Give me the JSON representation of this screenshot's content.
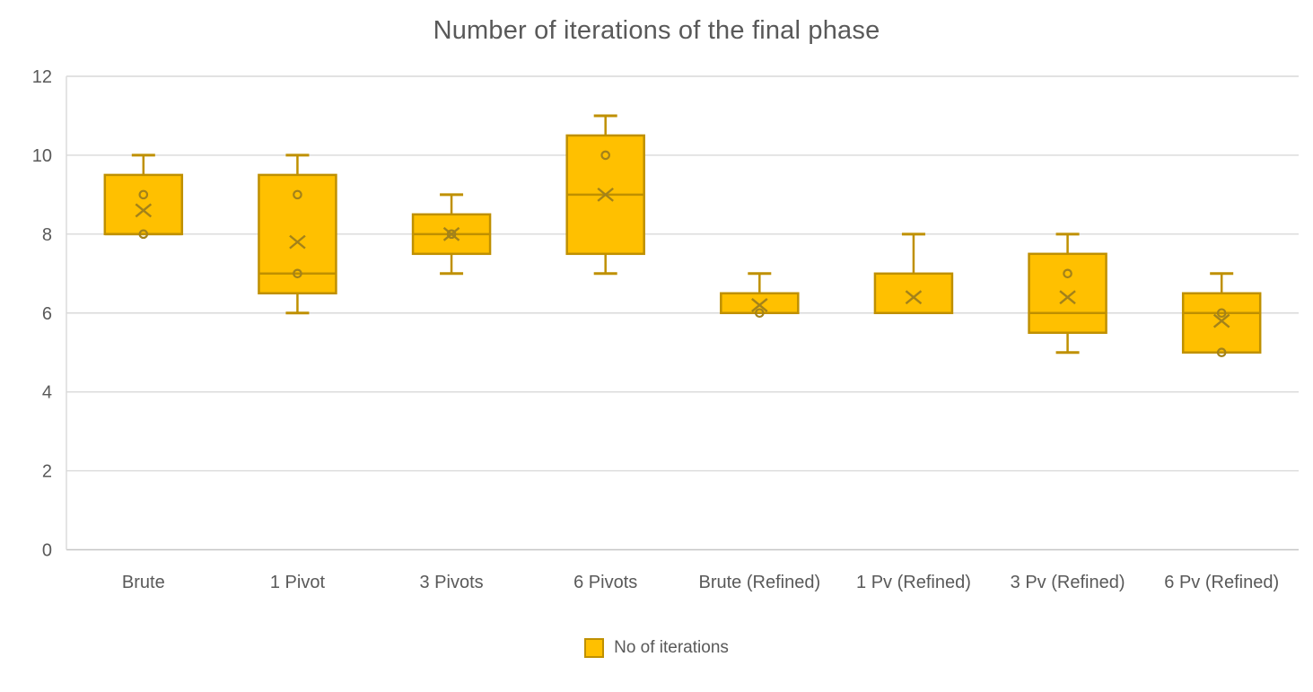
{
  "title": "Number of iterations of the final phase",
  "legend": {
    "label": "No of iterations",
    "swatch_fill": "#FFC000",
    "swatch_border": "#BF9000"
  },
  "colors": {
    "box_fill": "#FFC000",
    "box_border": "#BF9000",
    "marker": "#A3821A",
    "gridline": "#D9D9D9",
    "axis_line": "#C6C6C6",
    "text": "#595959",
    "background": "#FFFFFF"
  },
  "chart_data": {
    "type": "box",
    "title": "Number of iterations of the final phase",
    "xlabel": "",
    "ylabel": "",
    "legend_position": "bottom",
    "grid": true,
    "y_axis": {
      "min": 0,
      "max": 12,
      "tick_step": 2,
      "ticks": [
        0,
        2,
        4,
        6,
        8,
        10,
        12
      ]
    },
    "categories": [
      "Brute",
      "1 Pivot",
      "3 Pivots",
      "6 Pivots",
      "Brute (Refined)",
      "1 Pv (Refined)",
      "3 Pv (Refined)",
      "6 Pv (Refined)"
    ],
    "series": [
      {
        "name": "No of iterations",
        "boxes": [
          {
            "category": "Brute",
            "whisker_low": 8,
            "q1": 8,
            "median": 8,
            "q3": 9.5,
            "whisker_high": 10,
            "mean": 8.6,
            "points": [
              9,
              8
            ]
          },
          {
            "category": "1 Pivot",
            "whisker_low": 6,
            "q1": 6.5,
            "median": 7,
            "q3": 9.5,
            "whisker_high": 10,
            "mean": 7.8,
            "points": [
              9,
              7
            ]
          },
          {
            "category": "3 Pivots",
            "whisker_low": 7,
            "q1": 7.5,
            "median": 8,
            "q3": 8.5,
            "whisker_high": 9,
            "mean": 8.0,
            "points": [
              8
            ]
          },
          {
            "category": "6 Pivots",
            "whisker_low": 7,
            "q1": 7.5,
            "median": 9,
            "q3": 10.5,
            "whisker_high": 11,
            "mean": 9.0,
            "points": [
              10
            ]
          },
          {
            "category": "Brute (Refined)",
            "whisker_low": 6,
            "q1": 6,
            "median": 6,
            "q3": 6.5,
            "whisker_high": 7,
            "mean": 6.2,
            "points": [
              6
            ]
          },
          {
            "category": "1 Pv (Refined)",
            "whisker_low": 6,
            "q1": 6,
            "median": 6,
            "q3": 7,
            "whisker_high": 8,
            "mean": 6.4,
            "points": []
          },
          {
            "category": "3 Pv (Refined)",
            "whisker_low": 5,
            "q1": 5.5,
            "median": 6,
            "q3": 7.5,
            "whisker_high": 8,
            "mean": 6.4,
            "points": [
              7
            ]
          },
          {
            "category": "6 Pv (Refined)",
            "whisker_low": 5,
            "q1": 5,
            "median": 6,
            "q3": 6.5,
            "whisker_high": 7,
            "mean": 5.8,
            "points": [
              6,
              5
            ]
          }
        ]
      }
    ]
  }
}
